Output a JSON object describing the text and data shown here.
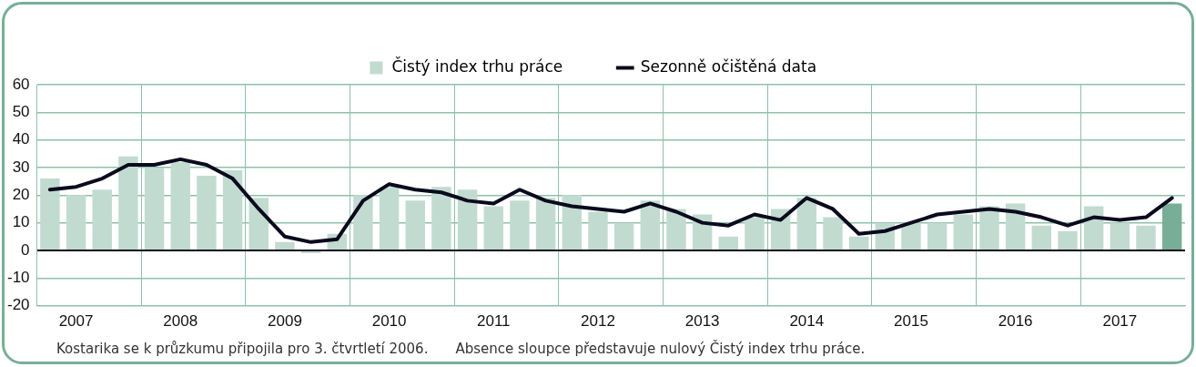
{
  "chart_data": {
    "type": "bar",
    "categories": [
      null,
      "2007",
      null,
      null,
      null,
      "2008",
      null,
      null,
      null,
      "2009",
      null,
      null,
      null,
      "2010",
      null,
      null,
      null,
      "2011",
      null,
      null,
      null,
      "2012",
      null,
      null,
      null,
      "2013",
      null,
      null,
      null,
      "2014",
      null,
      null,
      null,
      "2015",
      null,
      null,
      null,
      "2016",
      null,
      null,
      null,
      "2017",
      null,
      null
    ],
    "series": [
      {
        "name": "Čistý index trhu práce",
        "color": "#c2dbd1",
        "colors": [
          "#c2dbd1",
          "#c2dbd1",
          "#c2dbd1",
          "#c2dbd1",
          "#c2dbd1",
          "#c2dbd1",
          "#c2dbd1",
          "#c2dbd1",
          "#c2dbd1",
          "#c2dbd1",
          "#c2dbd1",
          "#c2dbd1",
          "#c2dbd1",
          "#c2dbd1",
          "#c2dbd1",
          "#c2dbd1",
          "#c2dbd1",
          "#c2dbd1",
          "#c2dbd1",
          "#c2dbd1",
          "#c2dbd1",
          "#c2dbd1",
          "#c2dbd1",
          "#c2dbd1",
          "#c2dbd1",
          "#c2dbd1",
          "#c2dbd1",
          "#c2dbd1",
          "#c2dbd1",
          "#c2dbd1",
          "#c2dbd1",
          "#c2dbd1",
          "#c2dbd1",
          "#c2dbd1",
          "#c2dbd1",
          "#c2dbd1",
          "#c2dbd1",
          "#c2dbd1",
          "#c2dbd1",
          "#c2dbd1",
          "#c2dbd1",
          "#c2dbd1",
          "#c2dbd1",
          "#78ae98"
        ],
        "values": [
          26,
          20,
          22,
          34,
          30,
          32,
          27,
          29,
          19,
          3,
          -1,
          6,
          20,
          23,
          18,
          23,
          22,
          16,
          18,
          19,
          20,
          14,
          10,
          18,
          15,
          13,
          5,
          12,
          15,
          19,
          12,
          5,
          10,
          10,
          10,
          13,
          16,
          17,
          9,
          7,
          16,
          10,
          9,
          17
        ]
      },
      {
        "name": "Sezonně očištěná data",
        "type": "line",
        "color": "#0a0a1e",
        "values": [
          22,
          23,
          26,
          31,
          31,
          33,
          31,
          26,
          15,
          5,
          3,
          4,
          18,
          24,
          22,
          21,
          18,
          17,
          22,
          18,
          16,
          15,
          14,
          17,
          14,
          10,
          9,
          13,
          11,
          19,
          15,
          6,
          7,
          10,
          13,
          14,
          15,
          14,
          12,
          9,
          12,
          11,
          12,
          19
        ]
      }
    ],
    "ylim": [
      -20,
      60
    ],
    "yticks": [
      -20,
      -10,
      0,
      10,
      20,
      30,
      40,
      50,
      60
    ],
    "grid": true,
    "legend": "top",
    "marker": "none",
    "line_style": "solid",
    "annotations": [
      "Kostarika se k průzkumu připojila pro 3. čtvrtletí 2006.",
      "Absence sloupce představuje nulový Čistý index trhu práce."
    ]
  }
}
